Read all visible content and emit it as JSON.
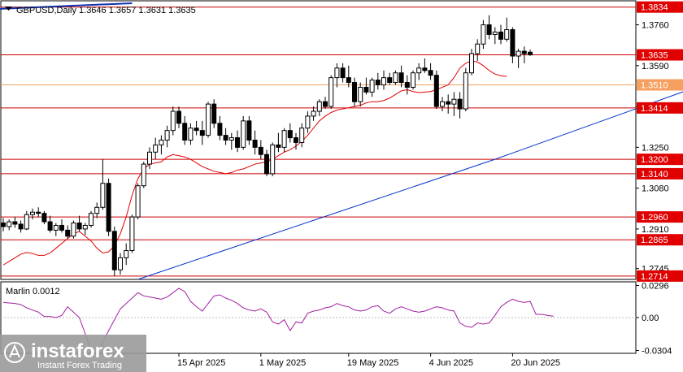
{
  "header": {
    "symbol_line": "GBPUSD,Daily  1.3646 1.3657 1.3631 1.3635",
    "indicator_label": "Marlin 0.0012"
  },
  "colors": {
    "candle_body": "#000000",
    "level_line": "#cc0000",
    "level_label_bg": "#e00000",
    "fast_ma": "#e00000",
    "slow_ma": "#0033cc",
    "orange_level": "#f0a060",
    "orange_label_bg": "#f5a060",
    "marlin_line": "#a020a0",
    "trendline": "#1030b0"
  },
  "chart_data": [
    {
      "type": "candlestick",
      "title": "GBPUSD,Daily",
      "ylim": [
        1.27,
        1.386
      ],
      "y_ticks": [
        "1.3760",
        "1.3590",
        "1.3420",
        "1.3250",
        "1.3080",
        "1.2910",
        "1.2745"
      ],
      "x_ticks": [
        "15 Apr 2025",
        "1 May 2025",
        "19 May 2025",
        "4 Jun 2025",
        "20 Jun 2025"
      ],
      "levels": [
        {
          "label": "1.3834",
          "value": 1.3834,
          "style": "red"
        },
        {
          "label": "1.3635",
          "value": 1.3635,
          "style": "red"
        },
        {
          "label": "1.3510",
          "value": 1.351,
          "style": "orange"
        },
        {
          "label": "1.3414",
          "value": 1.3414,
          "style": "red"
        },
        {
          "label": "1.3200",
          "value": 1.32,
          "style": "red"
        },
        {
          "label": "1.3140",
          "value": 1.314,
          "style": "red"
        },
        {
          "label": "1.2960",
          "value": 1.296,
          "style": "red"
        },
        {
          "label": "1.2865",
          "value": 1.2865,
          "style": "red"
        },
        {
          "label": "1.2714",
          "value": 1.2714,
          "style": "red"
        }
      ],
      "candles": [
        [
          1.2935,
          1.2955,
          1.29,
          1.292
        ],
        [
          1.292,
          1.295,
          1.2905,
          1.294
        ],
        [
          1.294,
          1.296,
          1.2915,
          1.293
        ],
        [
          1.293,
          1.2945,
          1.2895,
          1.291
        ],
        [
          1.291,
          1.2985,
          1.2905,
          1.297
        ],
        [
          1.297,
          1.2995,
          1.295,
          1.298
        ],
        [
          1.298,
          1.3,
          1.296,
          1.2975
        ],
        [
          1.2975,
          1.2985,
          1.293,
          1.294
        ],
        [
          1.294,
          1.2965,
          1.2895,
          1.2905
        ],
        [
          1.2905,
          1.2935,
          1.288,
          1.2925
        ],
        [
          1.2925,
          1.295,
          1.2895,
          1.2905
        ],
        [
          1.2905,
          1.2925,
          1.287,
          1.288
        ],
        [
          1.288,
          1.2945,
          1.287,
          1.2935
        ],
        [
          1.2935,
          1.2965,
          1.29,
          1.291
        ],
        [
          1.291,
          1.2935,
          1.2885,
          1.2925
        ],
        [
          1.2925,
          1.2985,
          1.2915,
          1.2975
        ],
        [
          1.2975,
          1.302,
          1.2955,
          1.3
        ],
        [
          1.3,
          1.32,
          1.299,
          1.31
        ],
        [
          1.31,
          1.312,
          1.288,
          1.29
        ],
        [
          1.29,
          1.292,
          1.2714,
          1.274
        ],
        [
          1.274,
          1.281,
          1.272,
          1.279
        ],
        [
          1.279,
          1.285,
          1.276,
          1.282
        ],
        [
          1.282,
          1.297,
          1.281,
          1.296
        ],
        [
          1.296,
          1.31,
          1.295,
          1.309
        ],
        [
          1.309,
          1.319,
          1.308,
          1.318
        ],
        [
          1.318,
          1.325,
          1.316,
          1.323
        ],
        [
          1.323,
          1.329,
          1.32,
          1.326
        ],
        [
          1.326,
          1.33,
          1.322,
          1.328
        ],
        [
          1.328,
          1.334,
          1.325,
          1.332
        ],
        [
          1.332,
          1.342,
          1.33,
          1.34
        ],
        [
          1.34,
          1.342,
          1.333,
          1.335
        ],
        [
          1.335,
          1.338,
          1.326,
          1.328
        ],
        [
          1.328,
          1.335,
          1.326,
          1.333
        ],
        [
          1.333,
          1.336,
          1.33,
          1.332
        ],
        [
          1.332,
          1.336,
          1.326,
          1.33
        ],
        [
          1.33,
          1.344,
          1.329,
          1.343
        ],
        [
          1.343,
          1.345,
          1.333,
          1.335
        ],
        [
          1.335,
          1.338,
          1.328,
          1.33
        ],
        [
          1.33,
          1.333,
          1.326,
          1.328
        ],
        [
          1.328,
          1.331,
          1.324,
          1.329
        ],
        [
          1.329,
          1.332,
          1.323,
          1.325
        ],
        [
          1.325,
          1.338,
          1.324,
          1.336
        ],
        [
          1.336,
          1.338,
          1.326,
          1.328
        ],
        [
          1.328,
          1.332,
          1.322,
          1.325
        ],
        [
          1.325,
          1.328,
          1.32,
          1.322
        ],
        [
          1.322,
          1.324,
          1.313,
          1.314
        ],
        [
          1.314,
          1.327,
          1.313,
          1.326
        ],
        [
          1.326,
          1.331,
          1.323,
          1.325
        ],
        [
          1.325,
          1.333,
          1.323,
          1.332
        ],
        [
          1.332,
          1.335,
          1.327,
          1.329
        ],
        [
          1.329,
          1.331,
          1.324,
          1.327
        ],
        [
          1.327,
          1.335,
          1.325,
          1.333
        ],
        [
          1.333,
          1.34,
          1.331,
          1.338
        ],
        [
          1.338,
          1.342,
          1.336,
          1.34
        ],
        [
          1.34,
          1.345,
          1.338,
          1.344
        ],
        [
          1.344,
          1.346,
          1.341,
          1.342
        ],
        [
          1.342,
          1.355,
          1.341,
          1.354
        ],
        [
          1.354,
          1.36,
          1.35,
          1.358
        ],
        [
          1.358,
          1.36,
          1.352,
          1.354
        ],
        [
          1.354,
          1.359,
          1.35,
          1.352
        ],
        [
          1.352,
          1.354,
          1.342,
          1.344
        ],
        [
          1.344,
          1.352,
          1.342,
          1.35
        ],
        [
          1.35,
          1.354,
          1.347,
          1.348
        ],
        [
          1.348,
          1.354,
          1.346,
          1.353
        ],
        [
          1.353,
          1.356,
          1.349,
          1.351
        ],
        [
          1.351,
          1.357,
          1.349,
          1.354
        ],
        [
          1.354,
          1.356,
          1.351,
          1.352
        ],
        [
          1.352,
          1.357,
          1.351,
          1.356
        ],
        [
          1.356,
          1.359,
          1.35,
          1.352
        ],
        [
          1.352,
          1.355,
          1.347,
          1.35
        ],
        [
          1.35,
          1.357,
          1.349,
          1.356
        ],
        [
          1.356,
          1.36,
          1.353,
          1.358
        ],
        [
          1.358,
          1.362,
          1.356,
          1.357
        ],
        [
          1.357,
          1.36,
          1.353,
          1.355
        ],
        [
          1.355,
          1.357,
          1.341,
          1.342
        ],
        [
          1.342,
          1.346,
          1.34,
          1.344
        ],
        [
          1.344,
          1.347,
          1.339,
          1.343
        ],
        [
          1.343,
          1.348,
          1.338,
          1.345
        ],
        [
          1.345,
          1.348,
          1.337,
          1.341
        ],
        [
          1.341,
          1.358,
          1.34,
          1.356
        ],
        [
          1.356,
          1.366,
          1.355,
          1.364
        ],
        [
          1.364,
          1.37,
          1.361,
          1.368
        ],
        [
          1.368,
          1.378,
          1.366,
          1.376
        ],
        [
          1.376,
          1.38,
          1.37,
          1.372
        ],
        [
          1.372,
          1.375,
          1.368,
          1.373
        ],
        [
          1.373,
          1.376,
          1.368,
          1.37
        ],
        [
          1.37,
          1.379,
          1.369,
          1.374
        ],
        [
          1.374,
          1.375,
          1.36,
          1.363
        ],
        [
          1.363,
          1.366,
          1.358,
          1.365
        ],
        [
          1.365,
          1.367,
          1.36,
          1.364
        ],
        [
          1.3646,
          1.3657,
          1.3631,
          1.3635
        ]
      ],
      "fast_ma": [
        1.276,
        1.2775,
        1.279,
        1.2805,
        1.2812,
        1.2808,
        1.28,
        1.28,
        1.281,
        1.283,
        1.285,
        1.287,
        1.289,
        1.29,
        1.288,
        1.286,
        1.283,
        1.281,
        1.2815,
        1.284,
        1.289,
        1.296,
        1.305,
        1.312,
        1.316,
        1.318,
        1.3185,
        1.319,
        1.321,
        1.322,
        1.3215,
        1.321,
        1.32,
        1.3185,
        1.317,
        1.316,
        1.315,
        1.3145,
        1.314,
        1.3145,
        1.3155,
        1.316,
        1.317,
        1.318,
        1.3185,
        1.319,
        1.32,
        1.3215,
        1.323,
        1.324,
        1.3255,
        1.3275,
        1.33,
        1.333,
        1.336,
        1.338,
        1.3395,
        1.3405,
        1.341,
        1.3415,
        1.342,
        1.3425,
        1.3435,
        1.344,
        1.344,
        1.3445,
        1.3455,
        1.347,
        1.3485,
        1.349,
        1.3482,
        1.3478,
        1.348,
        1.3482,
        1.349,
        1.35,
        1.351,
        1.354,
        1.358,
        1.36,
        1.361,
        1.3605,
        1.359,
        1.357,
        1.3555,
        1.3548,
        1.3545
      ],
      "slow_ma_points": [
        [
          23,
          1.27
        ],
        [
          84,
          1.32
        ],
        [
          124,
          1.355
        ],
        [
          157,
          1.365
        ],
        [
          165,
          1.368
        ]
      ],
      "trendline_points": [
        [
          -2,
          1.3825
        ],
        [
          22,
          1.385
        ]
      ]
    },
    {
      "type": "line",
      "indicator": "Marlin",
      "value_label": "0.0012",
      "ylim": [
        -0.033,
        0.033
      ],
      "y_ticks": [
        "0.0296",
        "0.00",
        "-0.0304"
      ],
      "series": [
        {
          "values": [
            0.014,
            0.0135,
            0.013,
            0.012,
            0.009,
            0.007,
            0.005,
            0.001,
            0.001,
            0.0,
            0.002,
            0.01,
            0.005,
            0.0,
            -0.015,
            -0.03,
            -0.033,
            -0.023,
            -0.012,
            -0.002,
            0.008,
            0.013,
            0.018,
            0.023,
            0.02,
            0.019,
            0.018,
            0.017,
            0.019,
            0.023,
            0.027,
            0.024,
            0.015,
            0.01,
            0.006,
            0.013,
            0.02,
            0.021,
            0.018,
            0.016,
            0.013,
            0.009,
            0.007,
            0.006,
            0.008,
            0.005,
            -0.004,
            -0.006,
            -0.002,
            -0.012,
            -0.004,
            -0.005,
            0.004,
            0.006,
            0.007,
            0.009,
            0.01,
            0.013,
            0.011,
            0.01,
            0.007,
            0.006,
            0.007,
            0.01,
            0.011,
            0.006,
            0.004,
            0.008,
            0.01,
            0.008,
            0.006,
            0.005,
            0.006,
            0.008,
            0.01,
            0.009,
            0.007,
            0.006,
            -0.005,
            -0.008,
            -0.009,
            -0.005,
            -0.006,
            -0.005,
            0.002,
            0.01,
            0.014,
            0.017,
            0.015,
            0.014,
            0.015,
            0.003,
            0.003,
            0.002,
            0.0012
          ]
        }
      ]
    }
  ],
  "watermark": {
    "brand": "instaforex",
    "tagline": "Instant Forex Trading"
  }
}
